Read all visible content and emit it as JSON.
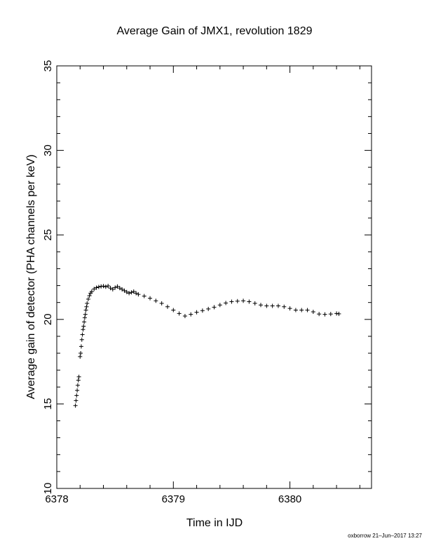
{
  "chart_data": {
    "type": "scatter",
    "title": "Average Gain of JMX1, revolution 1829",
    "xlabel": "Time in IJD",
    "ylabel": "Average gain of detector (PHA channels per keV)",
    "xlim": [
      6378,
      6380.7
    ],
    "ylim": [
      10,
      35
    ],
    "x_ticks": [
      6378,
      6379,
      6380
    ],
    "y_ticks": [
      10,
      15,
      20,
      25,
      30,
      35
    ],
    "grid": false,
    "marker": "+",
    "series": [
      {
        "points": [
          [
            6378.16,
            14.9
          ],
          [
            6378.165,
            15.2
          ],
          [
            6378.17,
            15.5
          ],
          [
            6378.175,
            15.8
          ],
          [
            6378.18,
            16.1
          ],
          [
            6378.185,
            16.4
          ],
          [
            6378.19,
            16.6
          ],
          [
            6378.2,
            17.8
          ],
          [
            6378.205,
            18.0
          ],
          [
            6378.21,
            18.4
          ],
          [
            6378.215,
            18.8
          ],
          [
            6378.22,
            19.1
          ],
          [
            6378.225,
            19.4
          ],
          [
            6378.23,
            19.6
          ],
          [
            6378.235,
            19.85
          ],
          [
            6378.24,
            20.1
          ],
          [
            6378.245,
            20.3
          ],
          [
            6378.25,
            20.55
          ],
          [
            6378.255,
            20.75
          ],
          [
            6378.26,
            20.95
          ],
          [
            6378.27,
            21.2
          ],
          [
            6378.28,
            21.4
          ],
          [
            6378.29,
            21.55
          ],
          [
            6378.3,
            21.65
          ],
          [
            6378.32,
            21.8
          ],
          [
            6378.34,
            21.88
          ],
          [
            6378.36,
            21.92
          ],
          [
            6378.38,
            21.95
          ],
          [
            6378.4,
            21.97
          ],
          [
            6378.42,
            21.93
          ],
          [
            6378.44,
            21.98
          ],
          [
            6378.46,
            21.85
          ],
          [
            6378.48,
            21.78
          ],
          [
            6378.5,
            21.88
          ],
          [
            6378.52,
            21.95
          ],
          [
            6378.54,
            21.85
          ],
          [
            6378.56,
            21.78
          ],
          [
            6378.58,
            21.7
          ],
          [
            6378.6,
            21.62
          ],
          [
            6378.62,
            21.55
          ],
          [
            6378.64,
            21.6
          ],
          [
            6378.66,
            21.65
          ],
          [
            6378.68,
            21.55
          ],
          [
            6378.7,
            21.48
          ],
          [
            6378.75,
            21.38
          ],
          [
            6378.8,
            21.25
          ],
          [
            6378.85,
            21.1
          ],
          [
            6378.9,
            20.95
          ],
          [
            6378.95,
            20.75
          ],
          [
            6379.0,
            20.55
          ],
          [
            6379.05,
            20.35
          ],
          [
            6379.1,
            20.2
          ],
          [
            6379.15,
            20.3
          ],
          [
            6379.2,
            20.42
          ],
          [
            6379.25,
            20.52
          ],
          [
            6379.3,
            20.62
          ],
          [
            6379.35,
            20.72
          ],
          [
            6379.4,
            20.85
          ],
          [
            6379.45,
            20.97
          ],
          [
            6379.5,
            21.05
          ],
          [
            6379.55,
            21.08
          ],
          [
            6379.6,
            21.1
          ],
          [
            6379.65,
            21.05
          ],
          [
            6379.7,
            20.95
          ],
          [
            6379.75,
            20.85
          ],
          [
            6379.8,
            20.8
          ],
          [
            6379.85,
            20.8
          ],
          [
            6379.9,
            20.8
          ],
          [
            6379.95,
            20.75
          ],
          [
            6380.0,
            20.65
          ],
          [
            6380.05,
            20.55
          ],
          [
            6380.1,
            20.55
          ],
          [
            6380.15,
            20.55
          ],
          [
            6380.2,
            20.45
          ],
          [
            6380.25,
            20.32
          ],
          [
            6380.3,
            20.3
          ],
          [
            6380.35,
            20.32
          ],
          [
            6380.4,
            20.35
          ],
          [
            6380.42,
            20.33
          ]
        ]
      }
    ]
  },
  "footer": "oxborrow 21–Jun–2017 13:27"
}
